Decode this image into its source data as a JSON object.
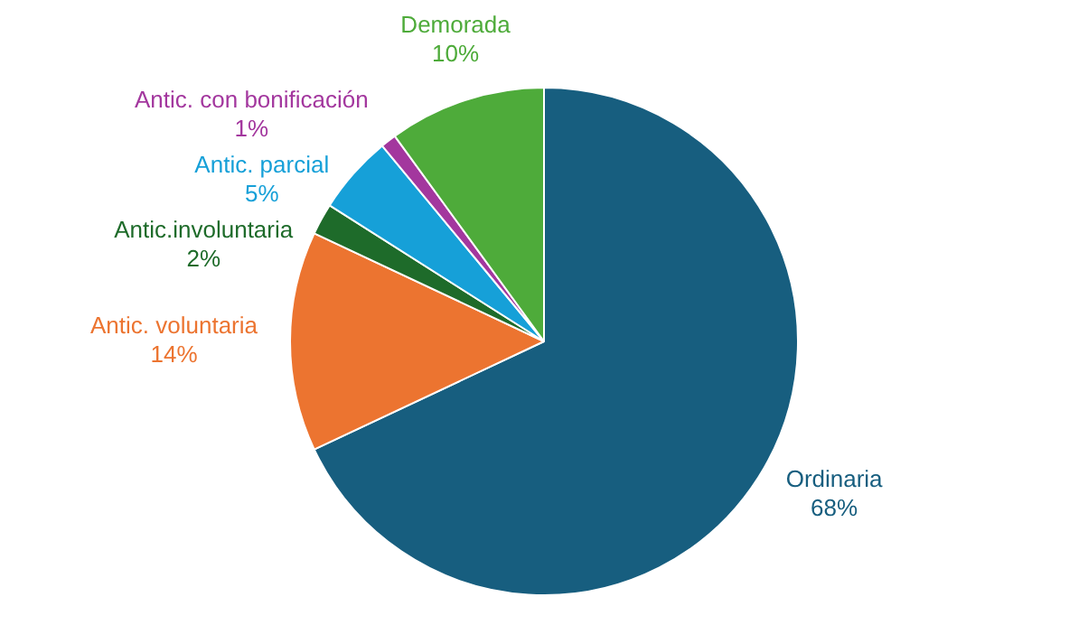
{
  "chart_data": {
    "type": "pie",
    "categories": [
      "Ordinaria",
      "Antic. voluntaria",
      "Antic.involuntaria",
      "Antic. parcial",
      "Antic. con bonificación",
      "Demorada"
    ],
    "values": [
      68,
      14,
      2,
      5,
      1,
      10
    ],
    "value_labels": [
      "68%",
      "14%",
      "2%",
      "5%",
      "1%",
      "10%"
    ],
    "colors": [
      "#175e7f",
      "#ec7430",
      "#1e6b2a",
      "#16a0d8",
      "#a3379e",
      "#4eab3a"
    ],
    "legend": false
  }
}
